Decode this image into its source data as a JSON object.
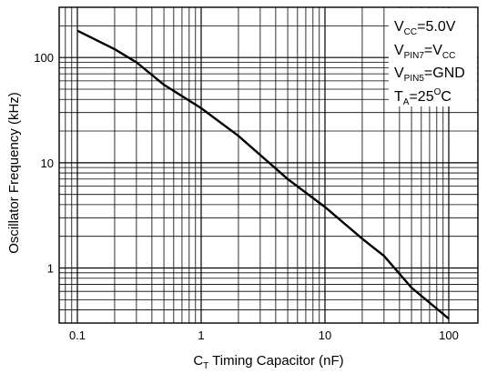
{
  "chart_data": {
    "type": "line",
    "xscale": "log",
    "yscale": "log",
    "xlim": [
      0.1,
      100
    ],
    "ylim": [
      0.3,
      300
    ],
    "grid": true,
    "xlabel_main": "C",
    "xlabel_sub": "T",
    "xlabel_rest": " Timing Capacitor (nF)",
    "ylabel": "Oscillator Frequency (kHz)",
    "x_ticks": [
      0.1,
      1,
      10,
      100
    ],
    "x_tick_labels": [
      "0.1",
      "1",
      "10",
      "100"
    ],
    "y_ticks": [
      1,
      10,
      100
    ],
    "y_tick_labels": [
      "1",
      "10",
      "100"
    ],
    "series": [
      {
        "x": [
          0.1,
          0.2,
          0.3,
          0.5,
          1,
          2,
          5,
          10,
          20,
          30,
          50,
          100
        ],
        "y": [
          180,
          120,
          90,
          55,
          33,
          18,
          7,
          3.8,
          1.9,
          1.3,
          0.65,
          0.33
        ]
      }
    ],
    "conditions": [
      {
        "main": "V",
        "sub": "CC",
        "rest": "=5.0V",
        "main2": "",
        "sub2": ""
      },
      {
        "main": "V",
        "sub": "PIN7",
        "rest": "=V",
        "main2": "",
        "sub2": "CC"
      },
      {
        "main": "V",
        "sub": "PIN5",
        "rest": "=GND",
        "main2": "",
        "sub2": ""
      },
      {
        "main": "T",
        "sub": "A",
        "rest": "=25",
        "sup": "O",
        "tail": "C"
      }
    ],
    "colors": {
      "line": "#000000",
      "grid": "#000000",
      "background": "#ffffff"
    }
  }
}
